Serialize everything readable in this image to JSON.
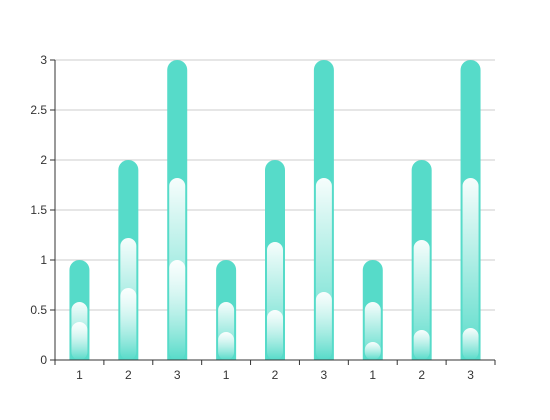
{
  "chart_data": {
    "type": "bar",
    "title": "",
    "xlabel": "",
    "ylabel": "",
    "categories": [
      "1",
      "2",
      "3",
      "1",
      "2",
      "3",
      "1",
      "2",
      "3"
    ],
    "values": [
      1,
      2,
      3,
      1,
      2,
      3,
      1,
      2,
      3
    ],
    "ylim": [
      0,
      3
    ],
    "yticks": [
      0,
      0.5,
      1,
      1.5,
      2,
      2.5,
      3
    ],
    "ytick_labels": [
      "0",
      "0.5",
      "1",
      "1.5",
      "2",
      "2.5",
      "3"
    ],
    "grid": true,
    "legend": "none",
    "highlights": [
      [
        0.58,
        0.38
      ],
      [
        1.22,
        0.72
      ],
      [
        1.82,
        1.0
      ],
      [
        0.58,
        0.28
      ],
      [
        1.18,
        0.5
      ],
      [
        1.82,
        0.68
      ],
      [
        0.58,
        0.18
      ],
      [
        1.2,
        0.3
      ],
      [
        1.82,
        0.32
      ]
    ],
    "colors": {
      "bar": "#56dbc9",
      "highlight": "#ffffff",
      "grid": "#cccccc",
      "axis": "#333333",
      "text": "#333333"
    }
  }
}
